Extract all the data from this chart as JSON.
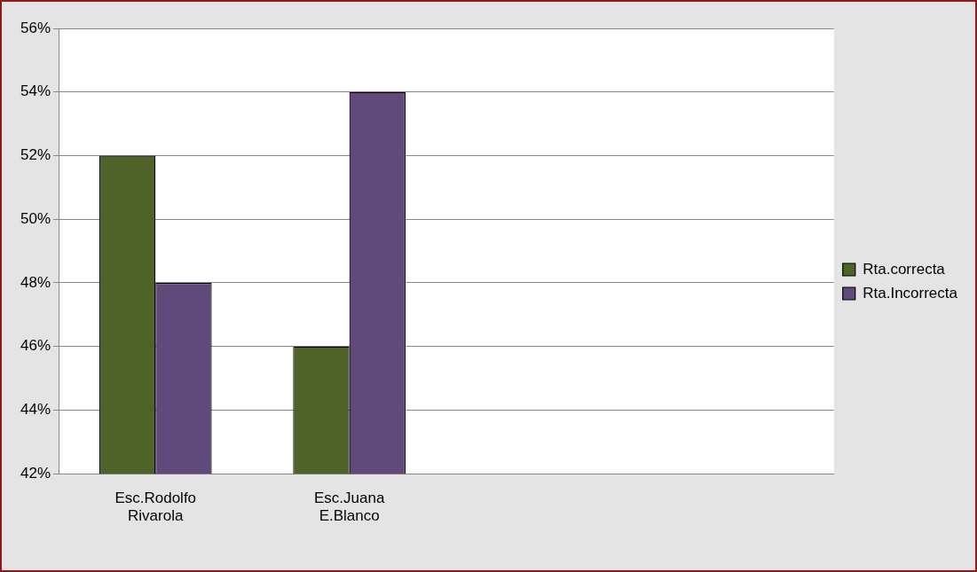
{
  "chart_data": {
    "type": "bar",
    "categories": [
      "Esc.Rodolfo Rivarola",
      "Esc.Juana E.Blanco",
      null,
      null
    ],
    "series": [
      {
        "name": "Rta.correcta",
        "color": "#4f6228",
        "values": [
          52,
          46,
          null,
          null
        ]
      },
      {
        "name": "Rta.Incorrecta",
        "color": "#604a7b",
        "values": [
          48,
          54,
          null,
          null
        ]
      }
    ],
    "ylim": [
      42,
      56
    ],
    "yticks": [
      {
        "value": 42,
        "label": "42%"
      },
      {
        "value": 44,
        "label": "44%"
      },
      {
        "value": 46,
        "label": "46%"
      },
      {
        "value": 48,
        "label": "48%"
      },
      {
        "value": 50,
        "label": "50%"
      },
      {
        "value": 52,
        "label": "52%"
      },
      {
        "value": 54,
        "label": "54%"
      },
      {
        "value": 56,
        "label": "56%"
      }
    ],
    "grid": "y",
    "legend": "right"
  }
}
